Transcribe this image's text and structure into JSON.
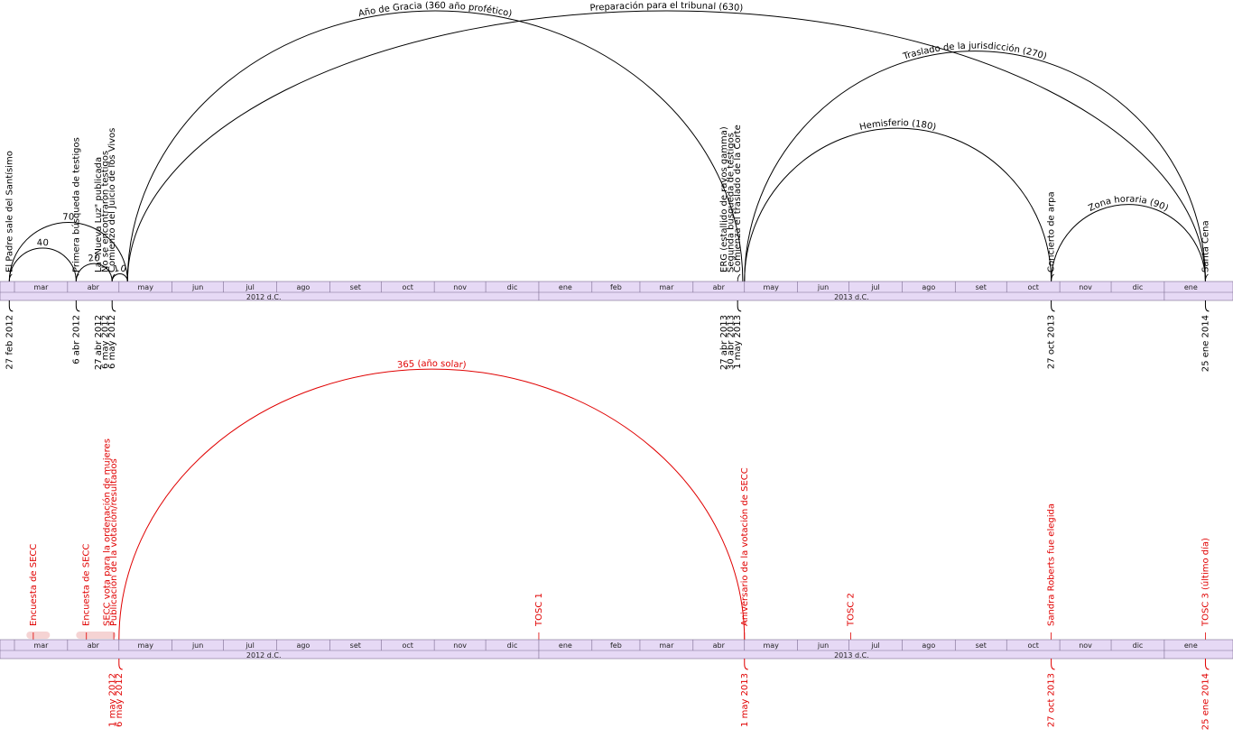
{
  "colors": {
    "top": "#000000",
    "bottom": "#e00000",
    "axis_fill": "#e6d9f5",
    "axis_stroke": "#7a6a90",
    "blur": "#f2c8c8"
  },
  "axis": {
    "months": [
      {
        "label": "mar",
        "from": "2012-03-01",
        "to": "2012-04-01"
      },
      {
        "label": "abr",
        "from": "2012-04-01",
        "to": "2012-05-01"
      },
      {
        "label": "may",
        "from": "2012-05-01",
        "to": "2012-06-01"
      },
      {
        "label": "jun",
        "from": "2012-06-01",
        "to": "2012-07-01"
      },
      {
        "label": "jul",
        "from": "2012-07-01",
        "to": "2012-08-01"
      },
      {
        "label": "ago",
        "from": "2012-08-01",
        "to": "2012-09-01"
      },
      {
        "label": "set",
        "from": "2012-09-01",
        "to": "2012-10-01"
      },
      {
        "label": "oct",
        "from": "2012-10-01",
        "to": "2012-11-01"
      },
      {
        "label": "nov",
        "from": "2012-11-01",
        "to": "2012-12-01"
      },
      {
        "label": "dic",
        "from": "2012-12-01",
        "to": "2013-01-01"
      },
      {
        "label": "ene",
        "from": "2013-01-01",
        "to": "2013-02-01"
      },
      {
        "label": "feb",
        "from": "2013-02-01",
        "to": "2013-03-01"
      },
      {
        "label": "mar",
        "from": "2013-03-01",
        "to": "2013-04-01"
      },
      {
        "label": "abr",
        "from": "2013-04-01",
        "to": "2013-05-01"
      },
      {
        "label": "may",
        "from": "2013-05-01",
        "to": "2013-06-01"
      },
      {
        "label": "jun",
        "from": "2013-06-01",
        "to": "2013-07-01"
      },
      {
        "label": "jul",
        "from": "2013-07-01",
        "to": "2013-08-01"
      },
      {
        "label": "ago",
        "from": "2013-08-01",
        "to": "2013-09-01"
      },
      {
        "label": "set",
        "from": "2013-09-01",
        "to": "2013-10-01"
      },
      {
        "label": "oct",
        "from": "2013-10-01",
        "to": "2013-11-01"
      },
      {
        "label": "nov",
        "from": "2013-11-01",
        "to": "2013-12-01"
      },
      {
        "label": "dic",
        "from": "2013-12-01",
        "to": "2014-01-01"
      },
      {
        "label": "ene",
        "from": "2014-01-01",
        "to": "2014-02-01"
      }
    ],
    "years": [
      {
        "label": "2012 d.C.",
        "from": "2012-02-15",
        "to": "2013-01-01"
      },
      {
        "label": "2013 d.C.",
        "from": "2013-01-01",
        "to": "2014-01-01"
      }
    ]
  },
  "top": {
    "arcs": [
      {
        "from": "2012-02-27",
        "to": "2012-04-06",
        "label": "40"
      },
      {
        "from": "2012-02-27",
        "to": "2012-05-06",
        "label": "70"
      },
      {
        "from": "2012-04-06",
        "to": "2012-04-27",
        "label": "20"
      },
      {
        "from": "2012-04-27",
        "to": "2012-05-06",
        "label": "10"
      },
      {
        "from": "2012-05-06",
        "to": "2013-04-30",
        "label": "Año de Gracia (360 año profético)"
      },
      {
        "from": "2012-05-06",
        "to": "2014-01-25",
        "label": "Preparación para el tribunal (630)"
      },
      {
        "from": "2013-05-01",
        "to": "2013-10-27",
        "label": "Hemisferio (180)"
      },
      {
        "from": "2013-05-01",
        "to": "2014-01-25",
        "label": "Traslado de la jurisdicción (270)"
      },
      {
        "from": "2013-10-27",
        "to": "2014-01-25",
        "label": "Zona horaria (90)"
      }
    ],
    "events": [
      {
        "date": "2012-02-27",
        "lines": [
          "El Padre sale del Santísimo"
        ]
      },
      {
        "date": "2012-04-06",
        "lines": [
          "Primera búsqueda de testigos"
        ]
      },
      {
        "date": "2012-04-27",
        "lines": [
          "La \"Nueva Luz\" publicada",
          "No se encontraron testigos",
          "Comienzo del Juicio de los Vivos"
        ]
      },
      {
        "date": "2013-04-27",
        "lines": [
          "ERG (estallido de rayos gamma)",
          "Segunda búsqueda de testigos",
          "Comienza el traslado de la Corte"
        ]
      },
      {
        "date": "2013-10-27",
        "lines": [
          "Concierto de arpa"
        ]
      },
      {
        "date": "2014-01-25",
        "lines": [
          "Santa Cena"
        ]
      }
    ],
    "dates": [
      {
        "date": "2012-02-27",
        "lines": [
          "27 feb 2012"
        ]
      },
      {
        "date": "2012-04-06",
        "lines": [
          "6 abr 2012"
        ]
      },
      {
        "date": "2012-04-27",
        "lines": [
          "27 abr 2012",
          "6 may 2012",
          "6 may 2012"
        ]
      },
      {
        "date": "2013-04-27",
        "lines": [
          "27 abr 2013",
          "30 abr 2013",
          "1 may 2013"
        ]
      },
      {
        "date": "2013-10-27",
        "lines": [
          "27 oct 2013"
        ]
      },
      {
        "date": "2014-01-25",
        "lines": [
          "25 ene 2014"
        ]
      }
    ]
  },
  "bottom": {
    "arcs": [
      {
        "from": "2012-05-01",
        "to": "2013-05-01",
        "label": "365 (año solar)"
      }
    ],
    "events": [
      {
        "date": "2012-03-12",
        "lines": [
          "Encuesta de SECC"
        ]
      },
      {
        "date": "2012-04-12",
        "lines": [
          "Encuesta de SECC"
        ]
      },
      {
        "date": "2012-04-28",
        "lines": [
          "SECC vota para la ordenación de mujeres",
          "Publicación de la votación/resultados"
        ]
      },
      {
        "date": "2013-01-01",
        "lines": [
          "TOSC 1"
        ]
      },
      {
        "date": "2013-05-01",
        "lines": [
          "Aniversario de la votación de SECC"
        ]
      },
      {
        "date": "2013-07-02",
        "lines": [
          "TOSC 2"
        ]
      },
      {
        "date": "2013-10-27",
        "lines": [
          "Sandra Roberts fue elegida"
        ]
      },
      {
        "date": "2014-01-25",
        "lines": [
          "TOSC 3 (último día)"
        ]
      }
    ],
    "dates": [
      {
        "date": "2012-05-01",
        "lines": [
          "1 may 2012",
          "6 may 2012"
        ]
      },
      {
        "date": "2013-05-01",
        "lines": [
          "1 may 2013"
        ]
      },
      {
        "date": "2013-10-27",
        "lines": [
          "27 oct 2013"
        ]
      },
      {
        "date": "2014-01-25",
        "lines": [
          "25 ene 2014"
        ]
      }
    ]
  }
}
